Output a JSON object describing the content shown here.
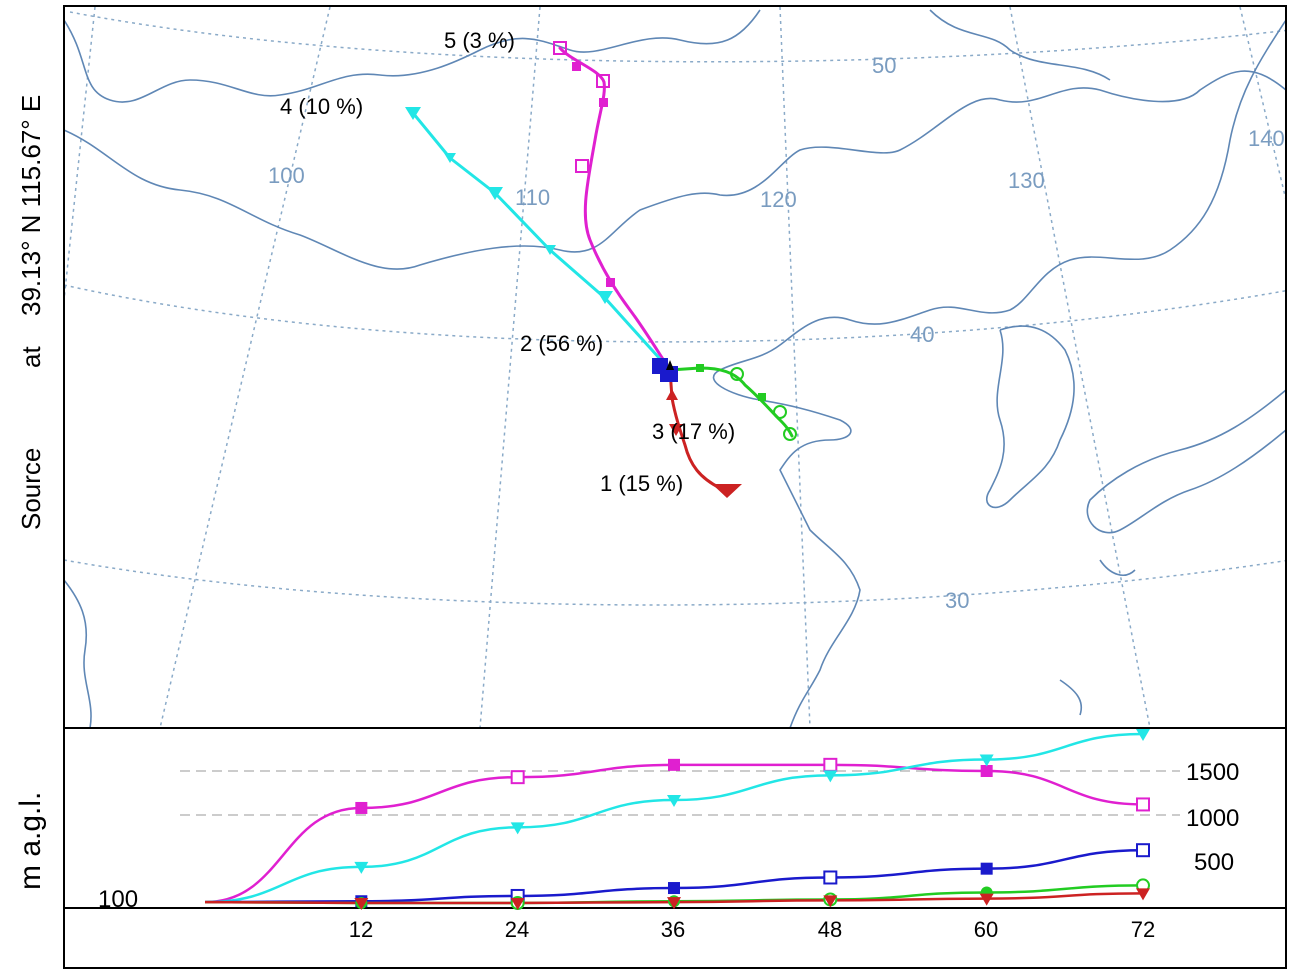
{
  "header": {
    "source_label": "Source",
    "at_label": "at",
    "coords": "39.13° N  115.67° E"
  },
  "height_panel": {
    "ylabel": "m a.g.l.",
    "yticks": [
      "100",
      "500",
      "1000",
      "1500"
    ],
    "xticks": [
      "12",
      "24",
      "36",
      "48",
      "60",
      "72"
    ]
  },
  "map": {
    "meridian_labels": [
      "100",
      "110",
      "120",
      "130",
      "140"
    ],
    "parallel_labels": [
      "50",
      "40",
      "30"
    ],
    "clusters": [
      {
        "label": "1 (15 %)",
        "color": "#cc2222",
        "marker": "triangle-down"
      },
      {
        "label": "2 (56 %)",
        "color": "#1a1acc",
        "marker": "square"
      },
      {
        "label": "3 (17 %)",
        "color": "#22cc22",
        "marker": "circle"
      },
      {
        "label": "4 (10 %)",
        "color": "#22e6e6",
        "marker": "triangle-down"
      },
      {
        "label": "5 (3 %)",
        "color": "#e020d0",
        "marker": "square"
      }
    ],
    "colors": {
      "coast": "#5f87b5",
      "grid": "#8aaac8"
    }
  },
  "chart_data": {
    "type": "line",
    "x": [
      0,
      12,
      24,
      36,
      48,
      60,
      72
    ],
    "xlabel": "",
    "ylabel": "m a.g.l.",
    "series": [
      {
        "name": "5 (3 %)",
        "values": [
          10,
          1080,
          1430,
          1570,
          1570,
          1500,
          1120
        ]
      },
      {
        "name": "4 (10 %)",
        "values": [
          10,
          410,
          860,
          1170,
          1450,
          1630,
          1920
        ]
      },
      {
        "name": "2 (56 %)",
        "values": [
          10,
          20,
          80,
          170,
          290,
          390,
          600
        ]
      },
      {
        "name": "3 (17 %)",
        "values": [
          10,
          0,
          0,
          20,
          40,
          120,
          200
        ]
      },
      {
        "name": "1 (15 %)",
        "values": [
          10,
          0,
          0,
          10,
          30,
          50,
          110
        ]
      }
    ]
  }
}
